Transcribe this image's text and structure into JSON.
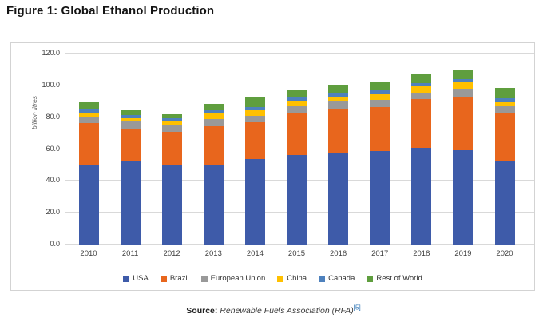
{
  "title": "Figure 1: Global Ethanol Production",
  "chart_data": {
    "type": "bar",
    "stacked": true,
    "title": "Figure 1: Global Ethanol Production",
    "xlabel": "",
    "ylabel": "billion litres",
    "ylim": [
      0,
      120
    ],
    "ytick_step": 20,
    "yticks": [
      "0.0",
      "20.0",
      "40.0",
      "60.0",
      "80.0",
      "100.0",
      "120.0"
    ],
    "grid": true,
    "legend_position": "bottom",
    "categories": [
      "2010",
      "2011",
      "2012",
      "2013",
      "2014",
      "2015",
      "2016",
      "2017",
      "2018",
      "2019",
      "2020"
    ],
    "series": [
      {
        "name": "USA",
        "color": "#3E5BA9",
        "values": [
          50.0,
          52.0,
          49.5,
          50.0,
          53.5,
          56.0,
          57.5,
          59.0,
          61.0,
          59.5,
          52.0
        ]
      },
      {
        "name": "Brazil",
        "color": "#E8661D",
        "values": [
          26.5,
          21.0,
          21.5,
          24.5,
          23.5,
          27.0,
          28.0,
          27.5,
          30.5,
          33.0,
          30.5
        ]
      },
      {
        "name": "European Union",
        "color": "#999999",
        "values": [
          4.0,
          4.5,
          4.5,
          4.5,
          4.0,
          4.0,
          4.5,
          4.5,
          4.0,
          5.5,
          4.5
        ]
      },
      {
        "name": "China",
        "color": "#FFC000",
        "values": [
          2.0,
          2.0,
          2.0,
          3.5,
          3.5,
          3.5,
          3.0,
          3.5,
          4.0,
          4.0,
          2.5
        ]
      },
      {
        "name": "Canada",
        "color": "#4E81BD",
        "values": [
          2.5,
          2.0,
          2.0,
          2.0,
          2.0,
          2.5,
          2.5,
          2.5,
          2.0,
          2.0,
          2.5
        ]
      },
      {
        "name": "Rest of World",
        "color": "#5F9E3E",
        "values": [
          4.5,
          3.0,
          2.5,
          4.0,
          6.0,
          4.0,
          5.0,
          5.5,
          6.0,
          6.0,
          6.5
        ]
      }
    ],
    "totals": [
      89.5,
      84.5,
      82.0,
      88.5,
      92.5,
      97.0,
      100.5,
      102.5,
      107.5,
      110.0,
      98.5
    ]
  },
  "source": {
    "label": "Source:",
    "text": "Renewable Fuels Association (RFA)",
    "ref": "[5]"
  },
  "colors": {
    "gridline": "#d9d9d9",
    "chart_border": "#d3d3d3",
    "tick_text": "#3f3f3f",
    "ref_link": "#2e75b6"
  }
}
